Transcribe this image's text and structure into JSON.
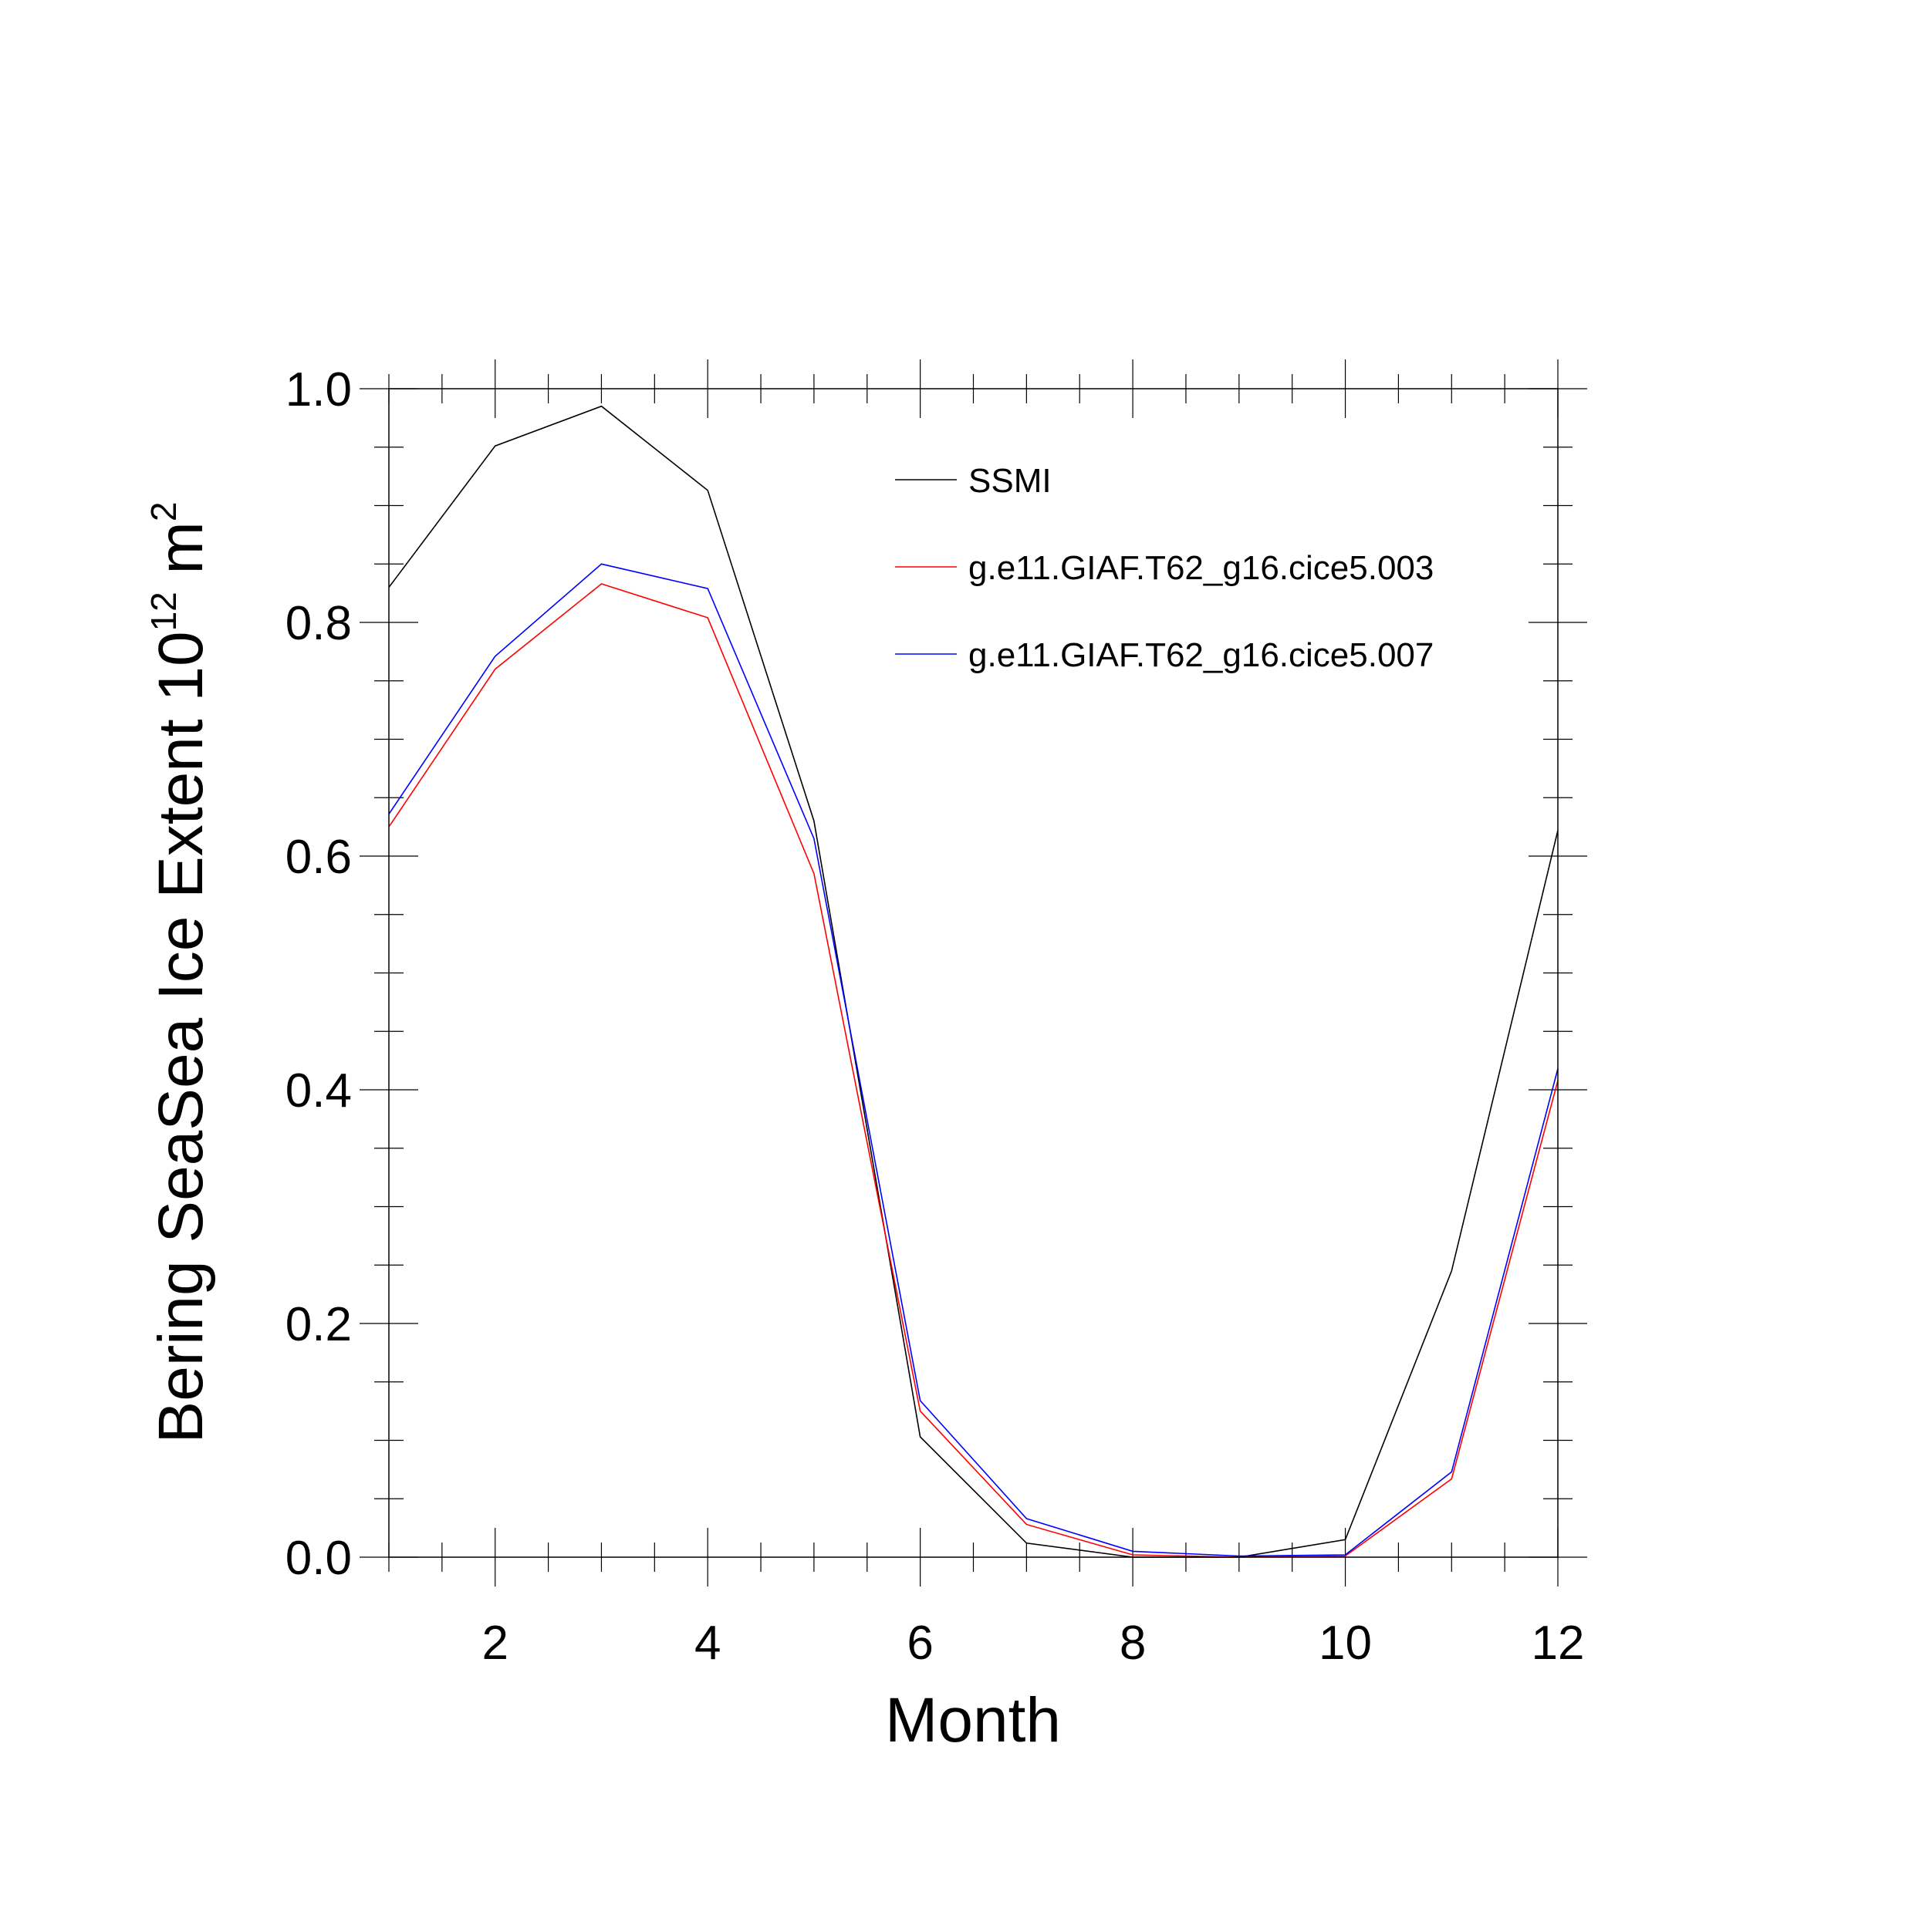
{
  "chart_data": {
    "type": "line",
    "title": "",
    "xlabel": "Month",
    "ylabel": {
      "main": "Bering SeaSea Ice Extent 10",
      "exp": "12",
      "unit": " m",
      "unit_exp": "2"
    },
    "xlim": [
      1,
      12
    ],
    "ylim": [
      0.0,
      1.0
    ],
    "x_ticks": [
      2,
      4,
      6,
      8,
      10,
      12
    ],
    "x_tick_labels": [
      "2",
      "4",
      "6",
      "8",
      "10",
      "12"
    ],
    "y_ticks": [
      0.0,
      0.2,
      0.4,
      0.6,
      0.8,
      1.0
    ],
    "y_tick_labels": [
      "0.0",
      "0.2",
      "0.4",
      "0.6",
      "0.8",
      "1.0"
    ],
    "legend_position": "top-right",
    "grid": false,
    "x": [
      1,
      2,
      3,
      4,
      5,
      6,
      7,
      8,
      9,
      10,
      11,
      12
    ],
    "series": [
      {
        "name": "SSMI",
        "color": "#000000",
        "values": [
          0.83,
          0.951,
          0.985,
          0.913,
          0.63,
          0.103,
          0.012,
          0.0,
          0.0,
          0.015,
          0.245,
          0.622
        ]
      },
      {
        "name": "g.e11.GIAF.T62_g16.cice5.003",
        "color": "#ff0000",
        "values": [
          0.625,
          0.76,
          0.833,
          0.804,
          0.585,
          0.125,
          0.028,
          0.002,
          0.0,
          0.001,
          0.067,
          0.408
        ]
      },
      {
        "name": "g.e11.GIAF.T62_g16.cice5.007",
        "color": "#0000ff",
        "values": [
          0.636,
          0.771,
          0.85,
          0.829,
          0.615,
          0.134,
          0.033,
          0.005,
          0.001,
          0.002,
          0.073,
          0.418
        ]
      }
    ]
  }
}
